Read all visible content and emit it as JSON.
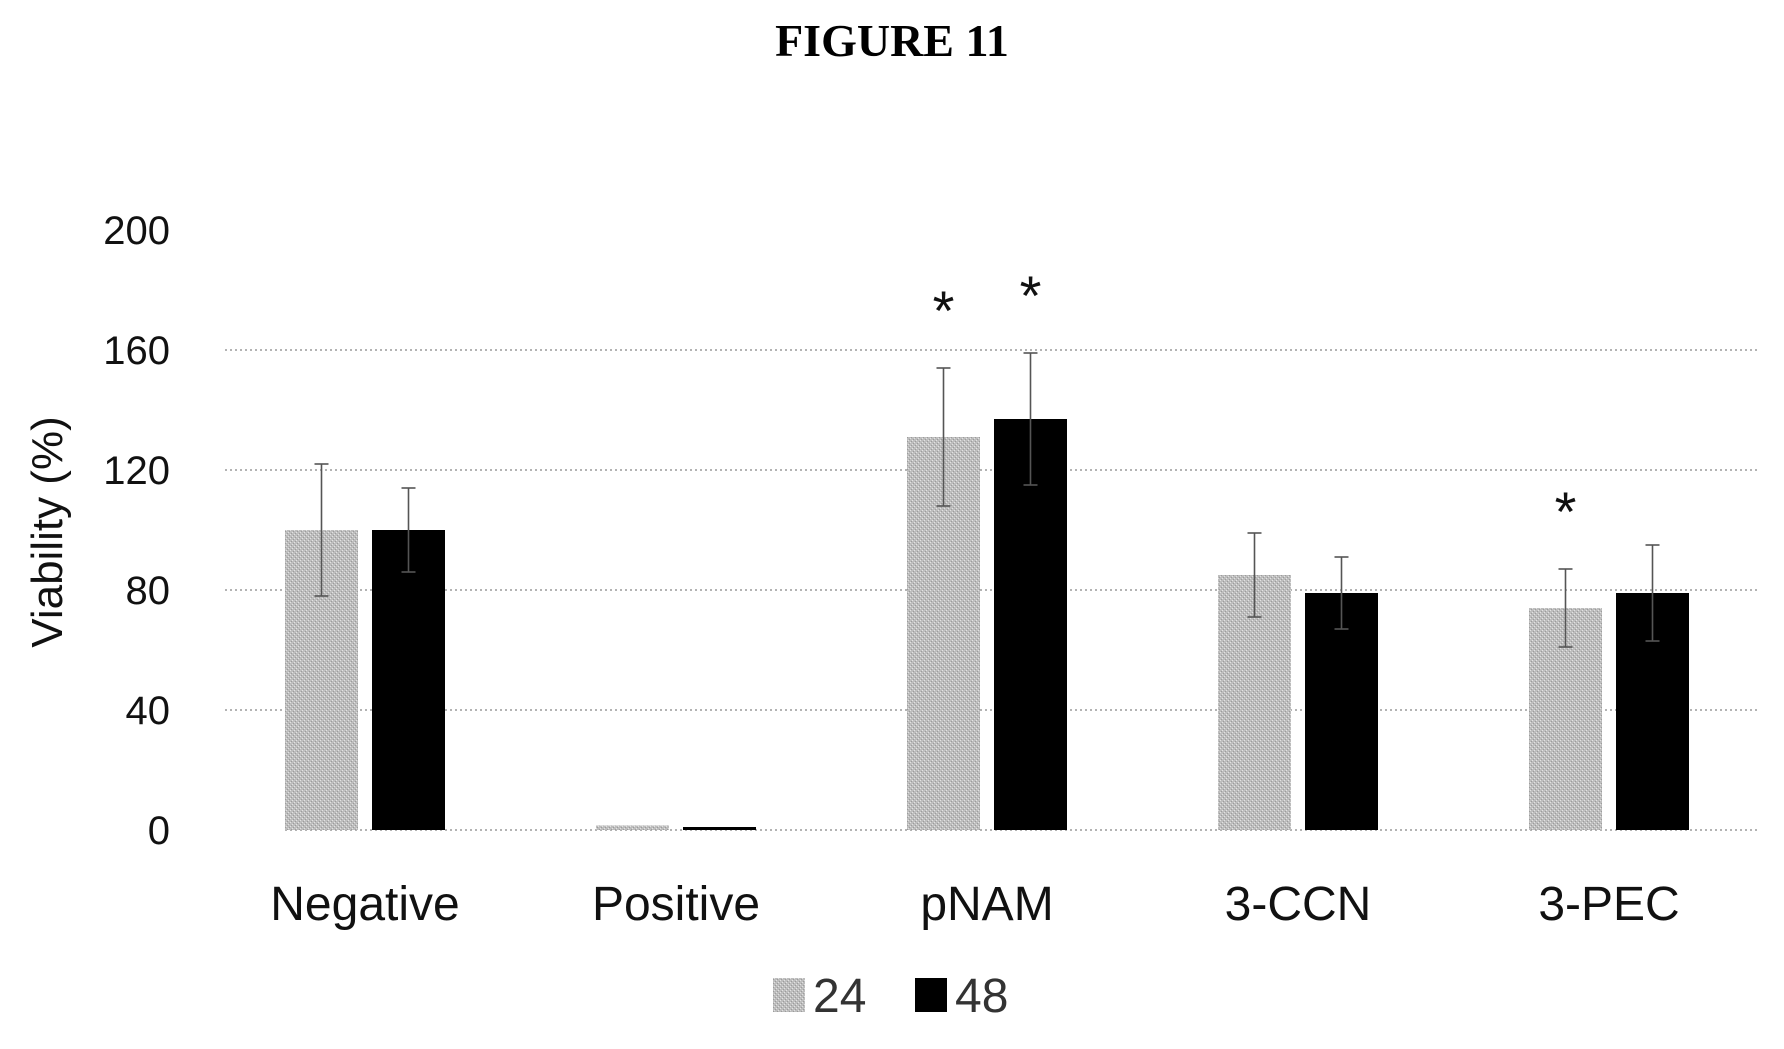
{
  "figure": {
    "title": "FIGURE 11"
  },
  "chart_data": {
    "type": "bar",
    "title": "",
    "xlabel": "",
    "ylabel": "Viability (%)",
    "ylim": [
      0,
      200
    ],
    "yticks": [
      0,
      40,
      80,
      120,
      160,
      200
    ],
    "grid": true,
    "legend_position": "bottom-center",
    "categories": [
      "Negative",
      "Positive",
      "pNAM",
      "3-CCN",
      "3-PEC"
    ],
    "series": [
      {
        "name": "24",
        "color": "#c4c4c4",
        "values": [
          100,
          1.5,
          131,
          85,
          74
        ],
        "errors": [
          22,
          0.5,
          23,
          14,
          13
        ]
      },
      {
        "name": "48",
        "color": "#000000",
        "values": [
          100,
          1,
          137,
          79,
          79
        ],
        "errors": [
          14,
          0.5,
          22,
          12,
          16
        ]
      }
    ],
    "annotations": [
      {
        "text": "*",
        "category": "pNAM",
        "series": "24"
      },
      {
        "text": "*",
        "category": "pNAM",
        "series": "48"
      },
      {
        "text": "*",
        "category": "3-PEC",
        "series": "24"
      }
    ]
  }
}
